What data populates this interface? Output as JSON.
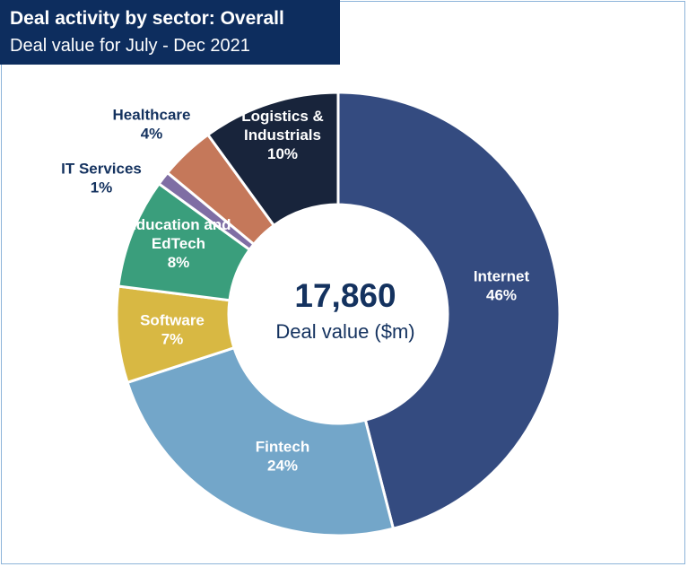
{
  "header": {
    "title": "Deal activity by sector: Overall",
    "subtitle": "Deal value for July - Dec 2021"
  },
  "center": {
    "value": "17,860",
    "caption": "Deal value ($m)"
  },
  "colors": {
    "header_bg": "#0d2d5e",
    "center_text": "#14325f",
    "outside_label": "#14325f"
  },
  "chart_data": {
    "type": "pie",
    "variant": "donut",
    "title": "Deal activity by sector: Overall",
    "subtitle": "Deal value for July - Dec 2021",
    "total": 17860,
    "total_label": "Deal value ($m)",
    "slices": [
      {
        "name": "Internet",
        "value": 46,
        "label": "46%",
        "color": "#344b80"
      },
      {
        "name": "Fintech",
        "value": 24,
        "label": "24%",
        "color": "#73a6c9"
      },
      {
        "name": "Software",
        "value": 7,
        "label": "7%",
        "color": "#d8b843"
      },
      {
        "name": "Education and EdTech",
        "value": 8,
        "label": "8%",
        "color": "#3a9e7c"
      },
      {
        "name": "IT Services",
        "value": 1,
        "label": "1%",
        "color": "#7f6ea4"
      },
      {
        "name": "Healthcare",
        "value": 4,
        "label": "4%",
        "color": "#c5785a"
      },
      {
        "name": "Logistics & Industrials",
        "value": 10,
        "label": "10%",
        "color": "#18243b"
      }
    ]
  }
}
